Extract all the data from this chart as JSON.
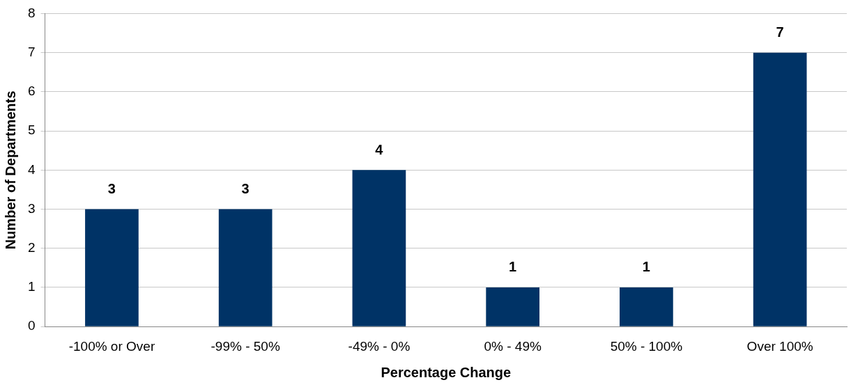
{
  "chart_data": {
    "type": "bar",
    "xlabel": "Percentage Change",
    "ylabel": "Number of Departments",
    "categories": [
      "-100% or Over",
      "-99% - 50%",
      "-49% - 0%",
      "0% - 49%",
      "50% - 100%",
      "Over 100%"
    ],
    "values": [
      3,
      3,
      4,
      1,
      1,
      7
    ],
    "color": "#003366",
    "ylim": [
      0,
      8
    ],
    "yticks": [
      0,
      1,
      2,
      3,
      4,
      5,
      6,
      7,
      8
    ],
    "grid": "y",
    "data_labels": true,
    "legend": false
  }
}
